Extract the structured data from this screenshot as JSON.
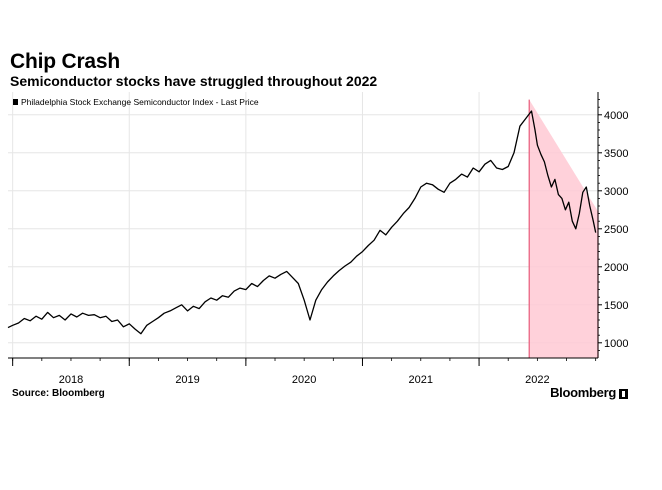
{
  "title": "Chip Crash",
  "subtitle": "Semiconductor stocks have struggled throughout 2022",
  "source": "Source: Bloomberg",
  "brand": "Bloomberg",
  "chart_data": {
    "type": "line",
    "legend": "Philadelphia Stock Exchange Semiconductor Index - Last Price",
    "legend_position": "top-left",
    "x_ticks": [
      "2018",
      "2019",
      "2020",
      "2021",
      "2022"
    ],
    "y_ticks": [
      1000,
      1500,
      2000,
      2500,
      3000,
      3500,
      4000
    ],
    "ylim": [
      800,
      4300
    ],
    "xlim": [
      2017.46,
      2022.52
    ],
    "grid": true,
    "y_axis_side": "right",
    "line_color": "#000000",
    "shade_color": "#ffc9d3",
    "shade_edge_color": "#e85a7a",
    "shade": {
      "x_start": 2021.93,
      "x_end": 2022.52,
      "top_start": 4200,
      "top_end": 2730
    },
    "series": [
      {
        "name": "Philadelphia Stock Exchange Semiconductor Index - Last Price",
        "x": [
          2017.46,
          2017.5,
          2017.55,
          2017.6,
          2017.65,
          2017.7,
          2017.75,
          2017.8,
          2017.85,
          2017.9,
          2017.95,
          2018.0,
          2018.05,
          2018.1,
          2018.15,
          2018.2,
          2018.25,
          2018.3,
          2018.35,
          2018.4,
          2018.45,
          2018.5,
          2018.55,
          2018.6,
          2018.65,
          2018.7,
          2018.75,
          2018.8,
          2018.85,
          2018.9,
          2018.95,
          2019.0,
          2019.05,
          2019.1,
          2019.15,
          2019.2,
          2019.25,
          2019.3,
          2019.35,
          2019.4,
          2019.45,
          2019.5,
          2019.55,
          2019.6,
          2019.65,
          2019.7,
          2019.75,
          2019.8,
          2019.85,
          2019.9,
          2019.95,
          2020.0,
          2020.05,
          2020.1,
          2020.15,
          2020.2,
          2020.25,
          2020.3,
          2020.35,
          2020.4,
          2020.45,
          2020.5,
          2020.55,
          2020.6,
          2020.65,
          2020.7,
          2020.75,
          2020.8,
          2020.85,
          2020.9,
          2020.95,
          2021.0,
          2021.05,
          2021.1,
          2021.15,
          2021.2,
          2021.25,
          2021.3,
          2021.35,
          2021.4,
          2021.45,
          2021.5,
          2021.55,
          2021.6,
          2021.65,
          2021.7,
          2021.75,
          2021.8,
          2021.85,
          2021.9,
          2021.95,
          2021.98,
          2022.0,
          2022.03,
          2022.06,
          2022.09,
          2022.12,
          2022.15,
          2022.18,
          2022.21,
          2022.24,
          2022.27,
          2022.3,
          2022.33,
          2022.36,
          2022.39,
          2022.42,
          2022.45,
          2022.48,
          2022.5
        ],
        "y": [
          1200,
          1230,
          1260,
          1320,
          1290,
          1350,
          1310,
          1400,
          1330,
          1360,
          1300,
          1380,
          1340,
          1390,
          1360,
          1370,
          1330,
          1350,
          1280,
          1300,
          1210,
          1250,
          1180,
          1120,
          1230,
          1280,
          1330,
          1390,
          1420,
          1460,
          1500,
          1420,
          1480,
          1450,
          1540,
          1590,
          1560,
          1620,
          1600,
          1680,
          1720,
          1700,
          1780,
          1740,
          1820,
          1880,
          1850,
          1900,
          1940,
          1860,
          1780,
          1560,
          1300,
          1560,
          1700,
          1800,
          1880,
          1950,
          2010,
          2060,
          2140,
          2200,
          2280,
          2350,
          2480,
          2420,
          2520,
          2600,
          2700,
          2780,
          2900,
          3050,
          3100,
          3080,
          3020,
          2980,
          3100,
          3150,
          3220,
          3180,
          3300,
          3250,
          3350,
          3400,
          3300,
          3280,
          3320,
          3500,
          3850,
          3950,
          4050,
          3800,
          3600,
          3480,
          3380,
          3200,
          3050,
          3150,
          2950,
          2900,
          2750,
          2850,
          2600,
          2500,
          2700,
          2980,
          3050,
          2800,
          2600,
          2450
        ]
      }
    ]
  }
}
